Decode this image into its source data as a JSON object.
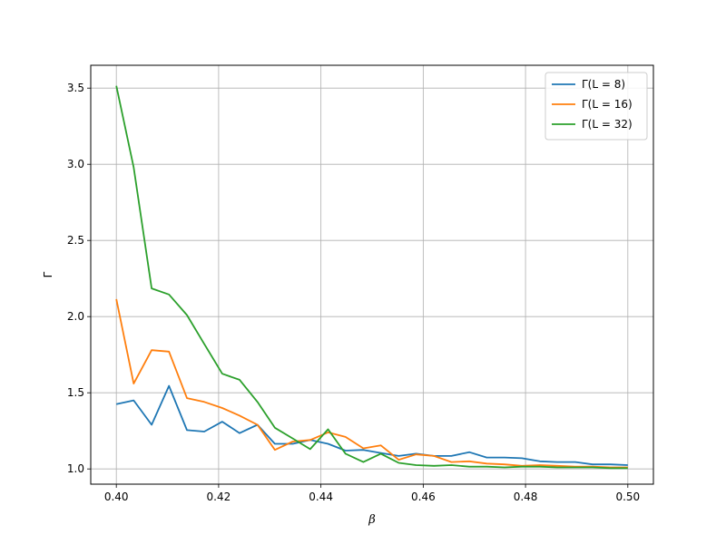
{
  "chart_data": {
    "type": "line",
    "xlabel": "β",
    "ylabel": "Γ",
    "xlim": [
      0.395,
      0.505
    ],
    "ylim": [
      0.9,
      3.65
    ],
    "xticks": [
      "0.40",
      "0.42",
      "0.44",
      "0.46",
      "0.48",
      "0.50"
    ],
    "yticks": [
      "1.0",
      "1.5",
      "2.0",
      "2.5",
      "3.0",
      "3.5"
    ],
    "grid": true,
    "legend_position": "top-right",
    "x": [
      0.4,
      0.4034,
      0.4069,
      0.4103,
      0.4138,
      0.4172,
      0.4207,
      0.4241,
      0.4276,
      0.431,
      0.4345,
      0.4379,
      0.4414,
      0.4448,
      0.4483,
      0.4517,
      0.4552,
      0.4586,
      0.4621,
      0.4655,
      0.469,
      0.4724,
      0.4759,
      0.4793,
      0.4828,
      0.4862,
      0.4897,
      0.4931,
      0.4966,
      0.5
    ],
    "series": [
      {
        "name": "Γ(L = 8)",
        "color": "#1f77b4",
        "values": [
          1.425,
          1.45,
          1.29,
          1.545,
          1.255,
          1.245,
          1.31,
          1.235,
          1.29,
          1.165,
          1.165,
          1.19,
          1.165,
          1.12,
          1.125,
          1.105,
          1.085,
          1.1,
          1.085,
          1.085,
          1.11,
          1.075,
          1.075,
          1.07,
          1.05,
          1.045,
          1.045,
          1.03,
          1.03,
          1.025
        ]
      },
      {
        "name": "Γ(L = 16)",
        "color": "#ff7f0e",
        "values": [
          2.115,
          1.56,
          1.78,
          1.77,
          1.465,
          1.44,
          1.4,
          1.35,
          1.29,
          1.125,
          1.18,
          1.19,
          1.24,
          1.21,
          1.135,
          1.155,
          1.06,
          1.095,
          1.085,
          1.045,
          1.05,
          1.035,
          1.03,
          1.02,
          1.025,
          1.02,
          1.015,
          1.015,
          1.01,
          1.01
        ]
      },
      {
        "name": "Γ(L = 32)",
        "color": "#2ca02c",
        "values": [
          3.515,
          2.98,
          2.185,
          2.145,
          2.01,
          1.82,
          1.625,
          1.585,
          1.44,
          1.27,
          1.2,
          1.13,
          1.26,
          1.1,
          1.045,
          1.1,
          1.04,
          1.025,
          1.02,
          1.025,
          1.015,
          1.015,
          1.01,
          1.015,
          1.015,
          1.01,
          1.01,
          1.01,
          1.005,
          1.005
        ]
      }
    ]
  }
}
